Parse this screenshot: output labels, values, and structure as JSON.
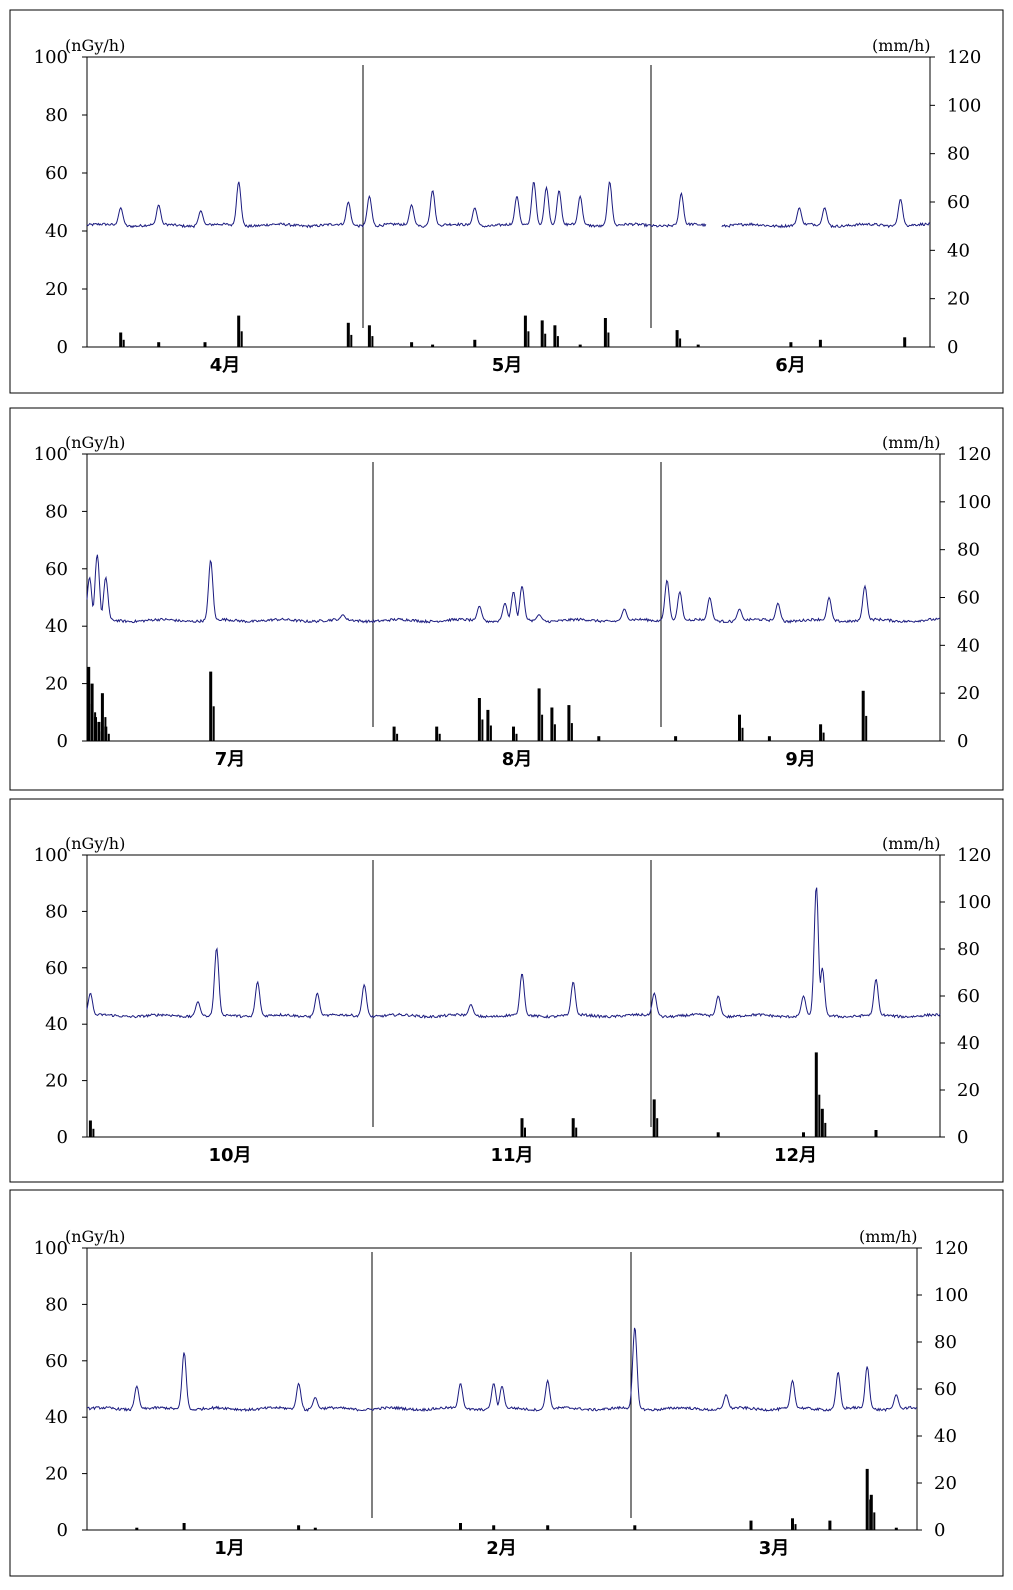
{
  "chart_data": [
    {
      "type": "line",
      "left_unit": "(nGy/h)",
      "right_unit": "(mm/h)",
      "y_left_ticks": [
        "0",
        "20",
        "40",
        "60",
        "80",
        "100"
      ],
      "y_right_ticks": [
        "0",
        "20",
        "40",
        "60",
        "80",
        "100",
        "120"
      ],
      "ylim_left": [
        0,
        100
      ],
      "ylim_right": [
        0,
        120
      ],
      "months": [
        "4月",
        "5月",
        "6月"
      ],
      "dose_rate_events": [
        [
          0.04,
          48
        ],
        [
          0.085,
          49
        ],
        [
          0.135,
          47
        ],
        [
          0.18,
          57
        ],
        [
          0.31,
          50
        ],
        [
          0.335,
          52
        ],
        [
          0.385,
          49
        ],
        [
          0.41,
          54
        ],
        [
          0.46,
          48
        ],
        [
          0.51,
          52
        ],
        [
          0.53,
          57
        ],
        [
          0.545,
          55
        ],
        [
          0.56,
          54
        ],
        [
          0.585,
          52
        ],
        [
          0.62,
          57
        ],
        [
          0.705,
          53
        ],
        [
          0.845,
          48
        ],
        [
          0.875,
          48
        ],
        [
          0.965,
          51
        ]
      ],
      "rainfall_events": [
        [
          0.04,
          6
        ],
        [
          0.085,
          2
        ],
        [
          0.14,
          2
        ],
        [
          0.18,
          13
        ],
        [
          0.31,
          10
        ],
        [
          0.335,
          9
        ],
        [
          0.385,
          2
        ],
        [
          0.41,
          1
        ],
        [
          0.46,
          3
        ],
        [
          0.52,
          13
        ],
        [
          0.54,
          11
        ],
        [
          0.555,
          9
        ],
        [
          0.585,
          1
        ],
        [
          0.615,
          12
        ],
        [
          0.7,
          7
        ],
        [
          0.725,
          1
        ],
        [
          0.835,
          2
        ],
        [
          0.87,
          3
        ],
        [
          0.97,
          4
        ]
      ],
      "data_gaps": [
        [
          0.735,
          0.752
        ]
      ],
      "baseline": 42
    },
    {
      "type": "line",
      "left_unit": "(nGy/h)",
      "right_unit": "(mm/h)",
      "y_left_ticks": [
        "0",
        "20",
        "40",
        "60",
        "80",
        "100"
      ],
      "y_right_ticks": [
        "0",
        "20",
        "40",
        "60",
        "80",
        "100",
        "120"
      ],
      "ylim_left": [
        0,
        100
      ],
      "ylim_right": [
        0,
        120
      ],
      "months": [
        "7月",
        "8月",
        "9月"
      ],
      "dose_rate_events": [
        [
          0.003,
          57
        ],
        [
          0.012,
          65
        ],
        [
          0.022,
          57
        ],
        [
          0.145,
          63
        ],
        [
          0.3,
          44
        ],
        [
          0.46,
          47
        ],
        [
          0.49,
          48
        ],
        [
          0.5,
          52
        ],
        [
          0.51,
          54
        ],
        [
          0.53,
          44
        ],
        [
          0.63,
          46
        ],
        [
          0.68,
          56
        ],
        [
          0.695,
          52
        ],
        [
          0.73,
          50
        ],
        [
          0.765,
          46
        ],
        [
          0.81,
          48
        ],
        [
          0.87,
          50
        ],
        [
          0.912,
          54
        ]
      ],
      "rainfall_events": [
        [
          0.002,
          31
        ],
        [
          0.006,
          24
        ],
        [
          0.01,
          10
        ],
        [
          0.014,
          8
        ],
        [
          0.018,
          20
        ],
        [
          0.022,
          6
        ],
        [
          0.145,
          29
        ],
        [
          0.36,
          6
        ],
        [
          0.41,
          6
        ],
        [
          0.46,
          18
        ],
        [
          0.47,
          13
        ],
        [
          0.5,
          6
        ],
        [
          0.53,
          22
        ],
        [
          0.545,
          14
        ],
        [
          0.565,
          15
        ],
        [
          0.6,
          2
        ],
        [
          0.69,
          2
        ],
        [
          0.765,
          11
        ],
        [
          0.8,
          2
        ],
        [
          0.86,
          7
        ],
        [
          0.91,
          21
        ]
      ],
      "data_gaps": [],
      "baseline": 42
    },
    {
      "type": "line",
      "left_unit": "(nGy/h)",
      "right_unit": "(mm/h)",
      "y_left_ticks": [
        "0",
        "20",
        "40",
        "60",
        "80",
        "100"
      ],
      "y_right_ticks": [
        "0",
        "20",
        "40",
        "60",
        "80",
        "100",
        "120"
      ],
      "ylim_left": [
        0,
        100
      ],
      "ylim_right": [
        0,
        120
      ],
      "months": [
        "10月",
        "11月",
        "12月"
      ],
      "dose_rate_events": [
        [
          0.004,
          51
        ],
        [
          0.13,
          48
        ],
        [
          0.152,
          67
        ],
        [
          0.2,
          55
        ],
        [
          0.27,
          51
        ],
        [
          0.325,
          54
        ],
        [
          0.45,
          47
        ],
        [
          0.51,
          58
        ],
        [
          0.57,
          55
        ],
        [
          0.665,
          51
        ],
        [
          0.74,
          50
        ],
        [
          0.84,
          50
        ],
        [
          0.855,
          89
        ],
        [
          0.862,
          60
        ],
        [
          0.925,
          56
        ]
      ],
      "rainfall_events": [
        [
          0.004,
          7
        ],
        [
          0.51,
          8
        ],
        [
          0.57,
          8
        ],
        [
          0.665,
          16
        ],
        [
          0.74,
          2
        ],
        [
          0.84,
          2
        ],
        [
          0.855,
          36
        ],
        [
          0.862,
          12
        ],
        [
          0.925,
          3
        ]
      ],
      "data_gaps": [],
      "baseline": 43
    },
    {
      "type": "line",
      "left_unit": "(nGy/h)",
      "right_unit": "(mm/h)",
      "y_left_ticks": [
        "0",
        "20",
        "40",
        "60",
        "80",
        "100"
      ],
      "y_right_ticks": [
        "0",
        "20",
        "40",
        "60",
        "80",
        "100",
        "120"
      ],
      "ylim_left": [
        0,
        100
      ],
      "ylim_right": [
        0,
        120
      ],
      "months": [
        "1月",
        "2月",
        "3月"
      ],
      "dose_rate_events": [
        [
          0.06,
          51
        ],
        [
          0.117,
          63
        ],
        [
          0.255,
          52
        ],
        [
          0.275,
          47
        ],
        [
          0.45,
          52
        ],
        [
          0.49,
          52
        ],
        [
          0.5,
          51
        ],
        [
          0.555,
          53
        ],
        [
          0.66,
          72
        ],
        [
          0.77,
          48
        ],
        [
          0.85,
          53
        ],
        [
          0.905,
          56
        ],
        [
          0.94,
          58
        ],
        [
          0.975,
          48
        ]
      ],
      "rainfall_events": [
        [
          0.06,
          1
        ],
        [
          0.117,
          3
        ],
        [
          0.255,
          2
        ],
        [
          0.275,
          1
        ],
        [
          0.45,
          3
        ],
        [
          0.49,
          2
        ],
        [
          0.555,
          2
        ],
        [
          0.66,
          2
        ],
        [
          0.8,
          4
        ],
        [
          0.85,
          5
        ],
        [
          0.895,
          4
        ],
        [
          0.94,
          26
        ],
        [
          0.945,
          15
        ],
        [
          0.975,
          1
        ]
      ],
      "data_gaps": [],
      "baseline": 43
    }
  ],
  "colors": {
    "dose_line": "#1c1c80",
    "rain_bar": "#000000",
    "frame": "#000000",
    "divider": "#000000",
    "tick_text": "#000000"
  }
}
